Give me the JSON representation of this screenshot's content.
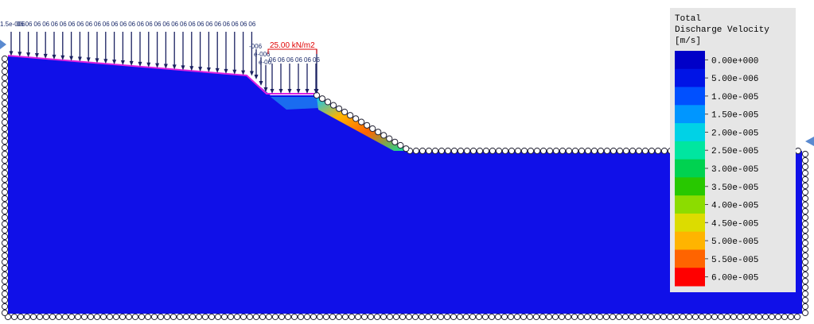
{
  "legend": {
    "title": [
      "Total",
      "Discharge Velocity",
      "[m/s]"
    ],
    "entries": [
      {
        "label": "0.00e+000",
        "color": "#0000c8"
      },
      {
        "label": "5.00e-006",
        "color": "#0014e6"
      },
      {
        "label": "1.00e-005",
        "color": "#0050ff"
      },
      {
        "label": "1.50e-005",
        "color": "#0096ff"
      },
      {
        "label": "2.00e-005",
        "color": "#00d2e6"
      },
      {
        "label": "2.50e-005",
        "color": "#00e6a0"
      },
      {
        "label": "3.00e-005",
        "color": "#00d250"
      },
      {
        "label": "3.50e-005",
        "color": "#28c800"
      },
      {
        "label": "4.00e-005",
        "color": "#8cdc00"
      },
      {
        "label": "4.50e-005",
        "color": "#dcdc00"
      },
      {
        "label": "5.00e-005",
        "color": "#ffb400"
      },
      {
        "label": "5.50e-005",
        "color": "#ff6400"
      },
      {
        "label": "6.00e-005",
        "color": "#ff0000"
      }
    ]
  },
  "loads": {
    "distributed_labels": [
      "1.5e-006",
      "06",
      "06",
      "06",
      "06",
      "06",
      "06",
      "06",
      "06",
      "06",
      "06",
      "06",
      "06",
      "06",
      "06",
      "06",
      "06",
      "06",
      "06",
      "06",
      "06",
      "06",
      "06",
      "06",
      "06",
      "06",
      "06",
      "06",
      "06"
    ],
    "slope_labels": [
      "-006",
      "e-006",
      "e-06"
    ],
    "point_load_label": "25.00 kN/m2",
    "point_labels": [
      "06",
      "06",
      "06",
      "06",
      "06",
      "06"
    ]
  }
}
